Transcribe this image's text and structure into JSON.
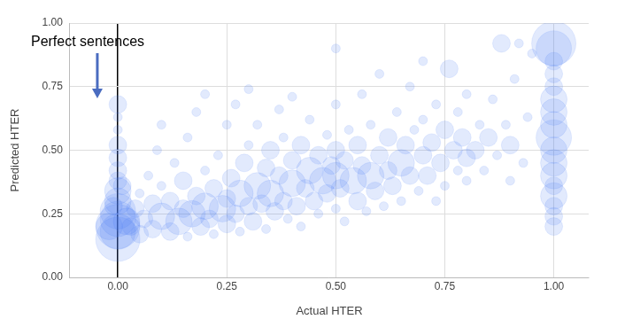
{
  "chart_data": {
    "type": "bubble",
    "x_label": "Actual HTER",
    "y_label": "Predicted HTER",
    "annotation": "Perfect sentences",
    "color": "#4a7ff5",
    "grid": true,
    "xlim": [
      -0.11,
      1.08
    ],
    "ylim": [
      0,
      1
    ],
    "xticks": [
      {
        "value": 0,
        "label": "0.00"
      },
      {
        "value": 0.25,
        "label": "0.25"
      },
      {
        "value": 0.5,
        "label": "0.50"
      },
      {
        "value": 0.75,
        "label": "0.75"
      },
      {
        "value": 1,
        "label": "1.00"
      }
    ],
    "yticks": [
      {
        "value": 0,
        "label": "0.00"
      },
      {
        "value": 0.25,
        "label": "0.25"
      },
      {
        "value": 0.5,
        "label": "0.50"
      },
      {
        "value": 0.75,
        "label": "0.75"
      },
      {
        "value": 1,
        "label": "1.00"
      }
    ],
    "x": [
      0,
      0,
      0,
      0,
      0,
      0,
      0,
      0,
      0,
      0,
      0,
      0,
      0,
      0,
      -0.02,
      0.02,
      -0.01,
      0.01,
      0.03,
      0.04,
      0.05,
      0.05,
      0.06,
      0.07,
      0.08,
      0.08,
      0.09,
      0.1,
      0.1,
      0.1,
      0.12,
      0.12,
      0.13,
      0.14,
      0.15,
      0.15,
      0.16,
      0.16,
      0.17,
      0.18,
      0.18,
      0.19,
      0.2,
      0.2,
      0.2,
      0.21,
      0.22,
      0.22,
      0.23,
      0.24,
      0.25,
      0.25,
      0.25,
      0.26,
      0.27,
      0.27,
      0.28,
      0.28,
      0.29,
      0.3,
      0.3,
      0.3,
      0.31,
      0.32,
      0.32,
      0.33,
      0.34,
      0.34,
      0.35,
      0.35,
      0.36,
      0.37,
      0.37,
      0.38,
      0.38,
      0.39,
      0.4,
      0.4,
      0.4,
      0.41,
      0.42,
      0.42,
      0.43,
      0.44,
      0.44,
      0.45,
      0.46,
      0.46,
      0.47,
      0.48,
      0.48,
      0.49,
      0.5,
      0.5,
      0.5,
      0.5,
      0.5,
      0.51,
      0.52,
      0.52,
      0.53,
      0.54,
      0.55,
      0.55,
      0.56,
      0.56,
      0.57,
      0.58,
      0.58,
      0.59,
      0.6,
      0.6,
      0.61,
      0.62,
      0.62,
      0.63,
      0.64,
      0.65,
      0.65,
      0.66,
      0.67,
      0.67,
      0.68,
      0.69,
      0.7,
      0.7,
      0.7,
      0.71,
      0.72,
      0.73,
      0.73,
      0.74,
      0.75,
      0.75,
      0.76,
      0.77,
      0.78,
      0.78,
      0.79,
      0.8,
      0.8,
      0.8,
      0.82,
      0.83,
      0.84,
      0.85,
      0.86,
      0.87,
      0.88,
      0.89,
      0.9,
      0.9,
      0.91,
      0.92,
      0.93,
      0.94,
      0.95,
      1,
      1,
      1,
      1,
      1,
      1,
      1,
      1,
      1,
      1,
      1,
      1,
      1,
      1,
      1,
      1,
      1
    ],
    "values": [
      0.15,
      0.18,
      0.2,
      0.23,
      0.26,
      0.3,
      0.34,
      0.38,
      0.42,
      0.47,
      0.52,
      0.58,
      0.63,
      0.68,
      0.2,
      0.22,
      0.28,
      0.36,
      0.2,
      0.27,
      0.17,
      0.33,
      0.23,
      0.4,
      0.19,
      0.29,
      0.5,
      0.24,
      0.36,
      0.6,
      0.18,
      0.3,
      0.45,
      0.22,
      0.27,
      0.38,
      0.16,
      0.55,
      0.25,
      0.32,
      0.65,
      0.2,
      0.28,
      0.42,
      0.72,
      0.23,
      0.35,
      0.17,
      0.48,
      0.27,
      0.31,
      0.21,
      0.6,
      0.39,
      0.25,
      0.68,
      0.33,
      0.18,
      0.45,
      0.28,
      0.52,
      0.74,
      0.22,
      0.36,
      0.6,
      0.29,
      0.43,
      0.19,
      0.33,
      0.5,
      0.26,
      0.4,
      0.66,
      0.3,
      0.55,
      0.23,
      0.37,
      0.46,
      0.71,
      0.28,
      0.52,
      0.2,
      0.35,
      0.42,
      0.62,
      0.3,
      0.48,
      0.25,
      0.38,
      0.56,
      0.33,
      0.44,
      0.27,
      0.4,
      0.5,
      0.68,
      0.9,
      0.35,
      0.46,
      0.22,
      0.58,
      0.38,
      0.3,
      0.52,
      0.44,
      0.72,
      0.26,
      0.4,
      0.6,
      0.34,
      0.48,
      0.8,
      0.28,
      0.42,
      0.55,
      0.36,
      0.65,
      0.45,
      0.3,
      0.52,
      0.4,
      0.75,
      0.58,
      0.34,
      0.48,
      0.62,
      0.85,
      0.4,
      0.53,
      0.3,
      0.68,
      0.45,
      0.58,
      0.36,
      0.82,
      0.5,
      0.42,
      0.65,
      0.55,
      0.38,
      0.47,
      0.72,
      0.5,
      0.6,
      0.42,
      0.55,
      0.7,
      0.48,
      0.92,
      0.6,
      0.52,
      0.38,
      0.78,
      0.92,
      0.45,
      0.63,
      0.88,
      0.2,
      0.24,
      0.28,
      0.32,
      0.36,
      0.4,
      0.45,
      0.5,
      0.55,
      0.6,
      0.65,
      0.7,
      0.75,
      0.8,
      0.85,
      0.9,
      0.92
    ],
    "sizes": [
      5,
      4,
      5,
      4,
      4,
      3,
      3,
      2,
      2,
      2,
      2,
      1,
      1,
      2,
      3,
      3,
      2,
      2,
      2,
      2,
      2,
      1,
      2,
      1,
      2,
      2,
      1,
      3,
      1,
      1,
      2,
      2,
      1,
      3,
      2,
      2,
      1,
      1,
      3,
      2,
      1,
      2,
      3,
      1,
      1,
      2,
      2,
      1,
      1,
      3,
      2,
      2,
      1,
      2,
      2,
      1,
      3,
      1,
      2,
      2,
      1,
      1,
      2,
      3,
      1,
      2,
      2,
      1,
      3,
      2,
      2,
      2,
      1,
      2,
      1,
      1,
      3,
      2,
      1,
      2,
      2,
      1,
      2,
      3,
      1,
      2,
      2,
      1,
      3,
      1,
      2,
      2,
      1,
      3,
      2,
      1,
      1,
      2,
      2,
      1,
      1,
      3,
      2,
      2,
      2,
      1,
      1,
      3,
      1,
      2,
      2,
      1,
      1,
      2,
      2,
      2,
      1,
      3,
      1,
      2,
      2,
      1,
      1,
      1,
      2,
      1,
      1,
      2,
      2,
      1,
      1,
      2,
      2,
      1,
      2,
      2,
      1,
      1,
      2,
      1,
      2,
      1,
      2,
      1,
      1,
      2,
      1,
      1,
      2,
      1,
      2,
      1,
      1,
      1,
      1,
      1,
      1,
      2,
      2,
      2,
      3,
      2,
      3,
      3,
      3,
      4,
      3,
      3,
      3,
      2,
      2,
      2,
      4,
      5
    ]
  }
}
